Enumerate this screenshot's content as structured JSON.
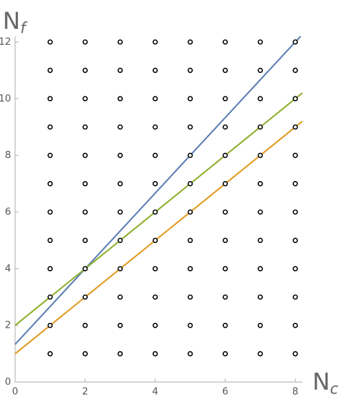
{
  "chart_data": {
    "type": "scatter",
    "x_label": {
      "main": "N",
      "sub": "c"
    },
    "y_label": {
      "main": "N",
      "sub": "f"
    },
    "xlim": [
      0,
      8.2
    ],
    "ylim": [
      0,
      12.2
    ],
    "xticks": [
      0,
      2,
      4,
      6,
      8
    ],
    "yticks": [
      0,
      2,
      4,
      6,
      8,
      10,
      12
    ],
    "series": [
      {
        "mode": "lines",
        "color": "#5e81b5",
        "x": [
          0,
          8.15
        ],
        "values": [
          1.333,
          12.2
        ]
      },
      {
        "mode": "lines",
        "color": "#8fb131",
        "x": [
          0,
          8.2
        ],
        "values": [
          2,
          10.2
        ]
      },
      {
        "mode": "lines",
        "color": "#e19c24",
        "x": [
          0,
          8.2
        ],
        "values": [
          1,
          9.2
        ]
      },
      {
        "mode": "markers",
        "color": "#000000",
        "x": [
          1,
          1,
          1,
          1,
          1,
          1,
          1,
          1,
          1,
          1,
          1,
          1,
          2,
          2,
          2,
          2,
          2,
          2,
          2,
          2,
          2,
          2,
          2,
          2,
          3,
          3,
          3,
          3,
          3,
          3,
          3,
          3,
          3,
          3,
          3,
          3,
          4,
          4,
          4,
          4,
          4,
          4,
          4,
          4,
          4,
          4,
          4,
          4,
          5,
          5,
          5,
          5,
          5,
          5,
          5,
          5,
          5,
          5,
          5,
          5,
          6,
          6,
          6,
          6,
          6,
          6,
          6,
          6,
          6,
          6,
          6,
          6,
          7,
          7,
          7,
          7,
          7,
          7,
          7,
          7,
          7,
          7,
          7,
          7,
          8,
          8,
          8,
          8,
          8,
          8,
          8,
          8,
          8,
          8,
          8,
          8
        ],
        "values": [
          1,
          2,
          3,
          4,
          5,
          6,
          7,
          8,
          9,
          10,
          11,
          12,
          1,
          2,
          3,
          4,
          5,
          6,
          7,
          8,
          9,
          10,
          11,
          12,
          1,
          2,
          3,
          4,
          5,
          6,
          7,
          8,
          9,
          10,
          11,
          12,
          1,
          2,
          3,
          4,
          5,
          6,
          7,
          8,
          9,
          10,
          11,
          12,
          1,
          2,
          3,
          4,
          5,
          6,
          7,
          8,
          9,
          10,
          11,
          12,
          1,
          2,
          3,
          4,
          5,
          6,
          7,
          8,
          9,
          10,
          11,
          12,
          1,
          2,
          3,
          4,
          5,
          6,
          7,
          8,
          9,
          10,
          11,
          12,
          1,
          2,
          3,
          4,
          5,
          6,
          7,
          8,
          9,
          10,
          11,
          12
        ]
      }
    ]
  }
}
